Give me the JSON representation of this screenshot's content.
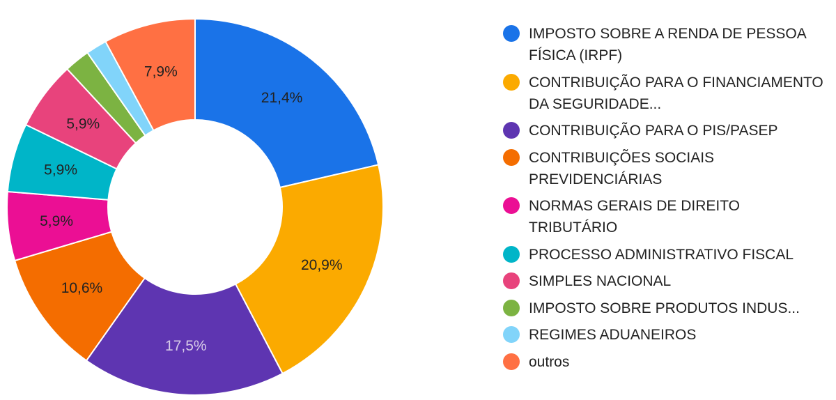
{
  "chart_data": {
    "type": "pie",
    "donut": true,
    "legend_position": "right",
    "slices": [
      {
        "label": "IMPOSTO SOBRE A RENDA DE PESSOA FÍSICA (IRPF)",
        "value": 21.4,
        "display": "21,4%",
        "color": "#1a73e8",
        "label_color": "#222222"
      },
      {
        "label": "CONTRIBUIÇÃO PARA O FINANCIAMENTO DA SEGURIDADE...",
        "value": 20.9,
        "display": "20,9%",
        "color": "#fbaa00",
        "label_color": "#222222"
      },
      {
        "label": "CONTRIBUIÇÃO PARA O PIS/PASEP",
        "value": 17.5,
        "display": "17,5%",
        "color": "#5e35b1",
        "label_color": "#d7cbe8"
      },
      {
        "label": "CONTRIBUIÇÕES SOCIAIS PREVIDENCIÁRIAS",
        "value": 10.6,
        "display": "10,6%",
        "color": "#f46d00",
        "label_color": "#222222"
      },
      {
        "label": "NORMAS GERAIS DE DIREITO TRIBUTÁRIO",
        "value": 5.9,
        "display": "5,9%",
        "color": "#eb0f94",
        "label_color": "#222222"
      },
      {
        "label": "PROCESSO ADMINISTRATIVO FISCAL",
        "value": 5.9,
        "display": "5,9%",
        "color": "#00b5c8",
        "label_color": "#222222"
      },
      {
        "label": "SIMPLES NACIONAL",
        "value": 5.9,
        "display": "5,9%",
        "color": "#e8437c",
        "label_color": "#222222"
      },
      {
        "label": "IMPOSTO SOBRE PRODUTOS INDUS...",
        "value": 2.2,
        "display": "",
        "color": "#7cb342",
        "label_color": "#222222"
      },
      {
        "label": "REGIMES ADUANEIROS",
        "value": 1.8,
        "display": "",
        "color": "#81d4fa",
        "label_color": "#222222"
      },
      {
        "label": "outros",
        "value": 7.9,
        "display": "7,9%",
        "color": "#ff7043",
        "label_color": "#222222"
      }
    ]
  }
}
